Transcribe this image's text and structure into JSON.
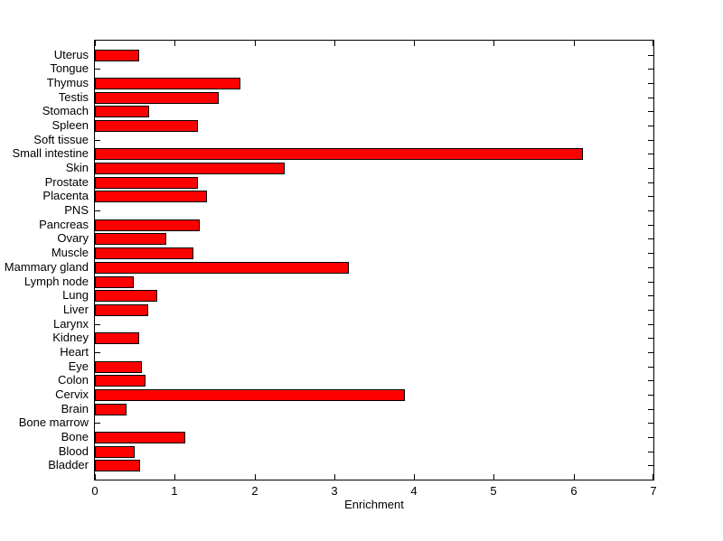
{
  "figure": {
    "background": "#FFFFFF"
  },
  "chart_data": {
    "type": "bar",
    "orientation": "horizontal",
    "xlabel": "Enrichment",
    "xlim": [
      0,
      7
    ],
    "x_ticks": [
      0,
      1,
      2,
      3,
      4,
      5,
      6,
      7
    ],
    "grid": false,
    "legend": false,
    "bar_color": "#FF0000",
    "bar_edge_color": "#000000",
    "axis_color": "#000000",
    "categories_top_to_bottom": [
      "Uterus",
      "Tongue",
      "Thymus",
      "Testis",
      "Stomach",
      "Spleen",
      "Soft tissue",
      "Small intestine",
      "Skin",
      "Prostate",
      "Placenta",
      "PNS",
      "Pancreas",
      "Ovary",
      "Muscle",
      "Mammary gland",
      "Lymph node",
      "Lung",
      "Liver",
      "Larynx",
      "Kidney",
      "Heart",
      "Eye",
      "Colon",
      "Cervix",
      "Brain",
      "Bone marrow",
      "Bone",
      "Blood",
      "Bladder"
    ],
    "values": [
      0.55,
      0,
      1.82,
      1.55,
      0.68,
      1.29,
      0,
      6.12,
      2.38,
      1.29,
      1.4,
      0,
      1.31,
      0.89,
      1.23,
      3.18,
      0.49,
      0.78,
      0.67,
      0,
      0.55,
      0,
      0.59,
      0.63,
      3.88,
      0.4,
      0,
      1.13,
      0.5,
      0.57
    ]
  }
}
